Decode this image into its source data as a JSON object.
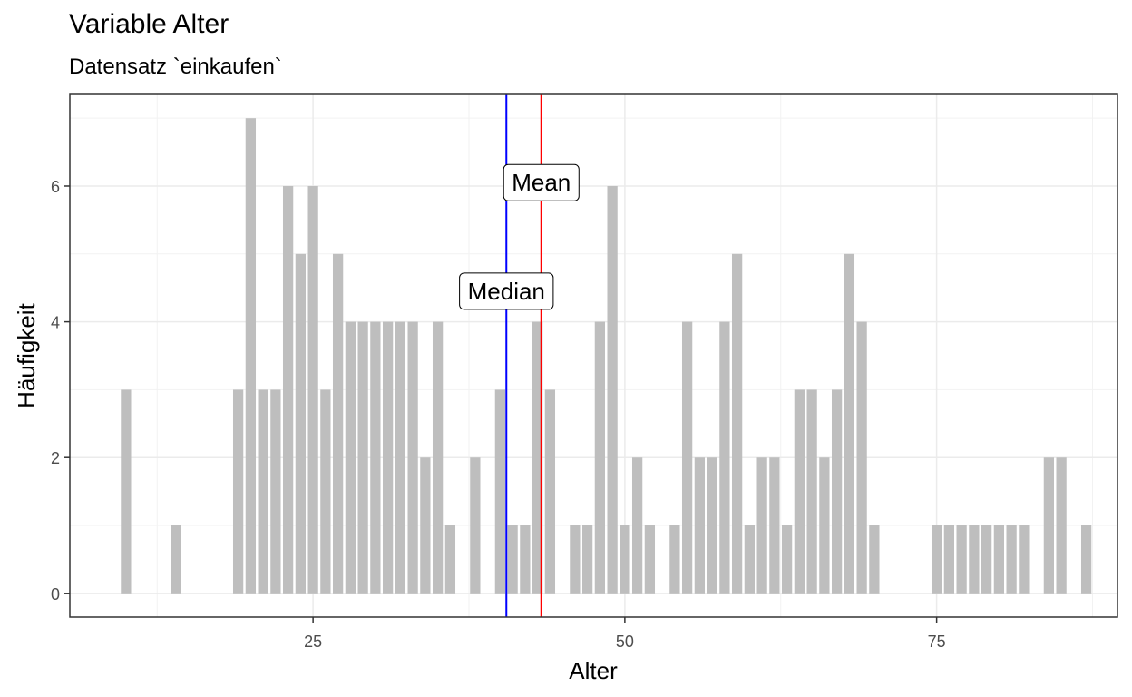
{
  "chart_data": {
    "type": "bar",
    "title": "Variable Alter",
    "subtitle": "Datensatz `einkaufen`",
    "xlabel": "Alter",
    "ylabel": "Häufigkeit",
    "xlim": [
      5.5,
      89.5
    ],
    "ylim": [
      -0.35,
      7.35
    ],
    "x_ticks": [
      25,
      50,
      75
    ],
    "y_ticks": [
      0,
      2,
      4,
      6
    ],
    "grid": true,
    "bar_color": "#bebebe",
    "x": [
      10,
      14,
      19,
      20,
      21,
      22,
      23,
      24,
      25,
      26,
      27,
      28,
      29,
      30,
      31,
      32,
      33,
      34,
      35,
      36,
      38,
      40,
      41,
      42,
      43,
      44,
      46,
      47,
      48,
      49,
      50,
      51,
      52,
      54,
      55,
      56,
      57,
      58,
      59,
      60,
      61,
      62,
      63,
      64,
      65,
      66,
      67,
      68,
      69,
      70,
      75,
      76,
      77,
      78,
      79,
      80,
      81,
      82,
      84,
      85,
      87
    ],
    "values": [
      3,
      1,
      3,
      7,
      3,
      3,
      6,
      5,
      6,
      3,
      5,
      4,
      4,
      4,
      4,
      4,
      4,
      2,
      4,
      1,
      2,
      3,
      1,
      1,
      4,
      3,
      1,
      1,
      4,
      6,
      1,
      2,
      1,
      1,
      4,
      2,
      2,
      4,
      5,
      1,
      2,
      2,
      1,
      3,
      3,
      2,
      3,
      5,
      4,
      1,
      1,
      1,
      1,
      1,
      1,
      1,
      1,
      1,
      2,
      2,
      1
    ],
    "annotations": [
      {
        "label": "Median",
        "x": 40.5,
        "y": 4.45,
        "color": "#0000ff"
      },
      {
        "label": "Mean",
        "x": 43.3,
        "y": 6.05,
        "color": "#ff0000"
      }
    ]
  }
}
